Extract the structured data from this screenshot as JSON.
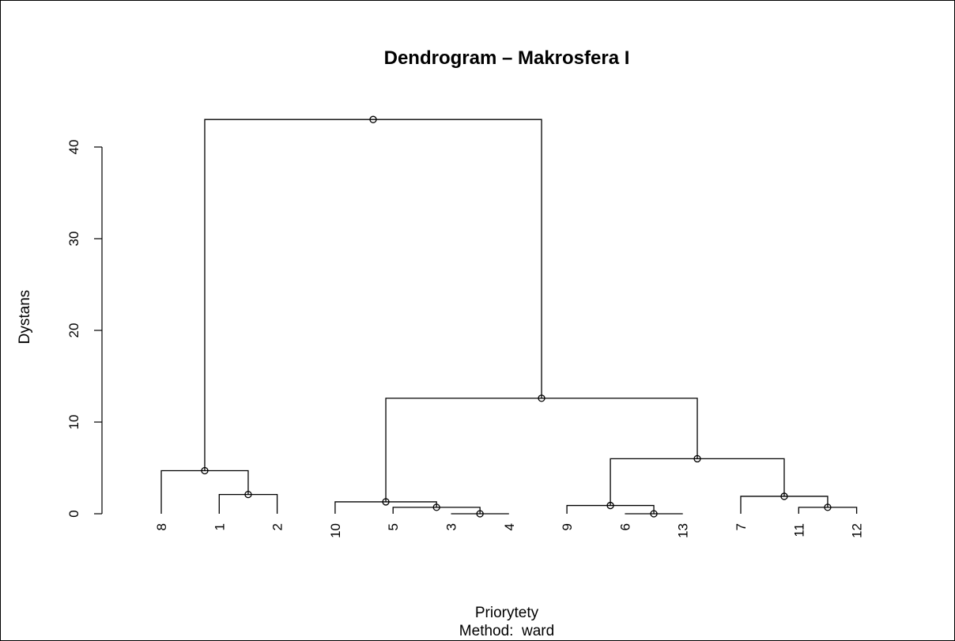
{
  "chart_data": {
    "type": "dendrogram",
    "title": "Dendrogram – Makrosfera I",
    "xlabel": "Priorytety",
    "sublabel": "Method:  ward",
    "ylabel": "Dystans",
    "ylim": [
      0,
      43
    ],
    "yticks": [
      0,
      10,
      20,
      30,
      40
    ],
    "leaves": [
      "8",
      "1",
      "2",
      "10",
      "5",
      "3",
      "4",
      "9",
      "6",
      "13",
      "7",
      "11",
      "12"
    ],
    "merges": [
      {
        "id": "m1",
        "left": "leaf:1",
        "right": "leaf:2",
        "height": 2.1
      },
      {
        "id": "m2",
        "left": "leaf:8",
        "right": "m1",
        "height": 4.7
      },
      {
        "id": "m3",
        "left": "leaf:3",
        "right": "leaf:4",
        "height": 0.0
      },
      {
        "id": "m4",
        "left": "leaf:5",
        "right": "m3",
        "height": 0.7
      },
      {
        "id": "m5",
        "left": "leaf:10",
        "right": "m4",
        "height": 1.3
      },
      {
        "id": "m6",
        "left": "leaf:6",
        "right": "leaf:13",
        "height": 0.0
      },
      {
        "id": "m7",
        "left": "leaf:9",
        "right": "m6",
        "height": 0.9
      },
      {
        "id": "m8",
        "left": "leaf:11",
        "right": "leaf:12",
        "height": 0.7
      },
      {
        "id": "m9",
        "left": "leaf:7",
        "right": "m8",
        "height": 1.9
      },
      {
        "id": "m10",
        "left": "m7",
        "right": "m9",
        "height": 6.0
      },
      {
        "id": "m11",
        "left": "m5",
        "right": "m10",
        "height": 12.6
      },
      {
        "id": "m12",
        "left": "m2",
        "right": "m11",
        "height": 43.0
      }
    ],
    "leaf_baseline": 0.0,
    "grid": false,
    "legend": "none"
  }
}
